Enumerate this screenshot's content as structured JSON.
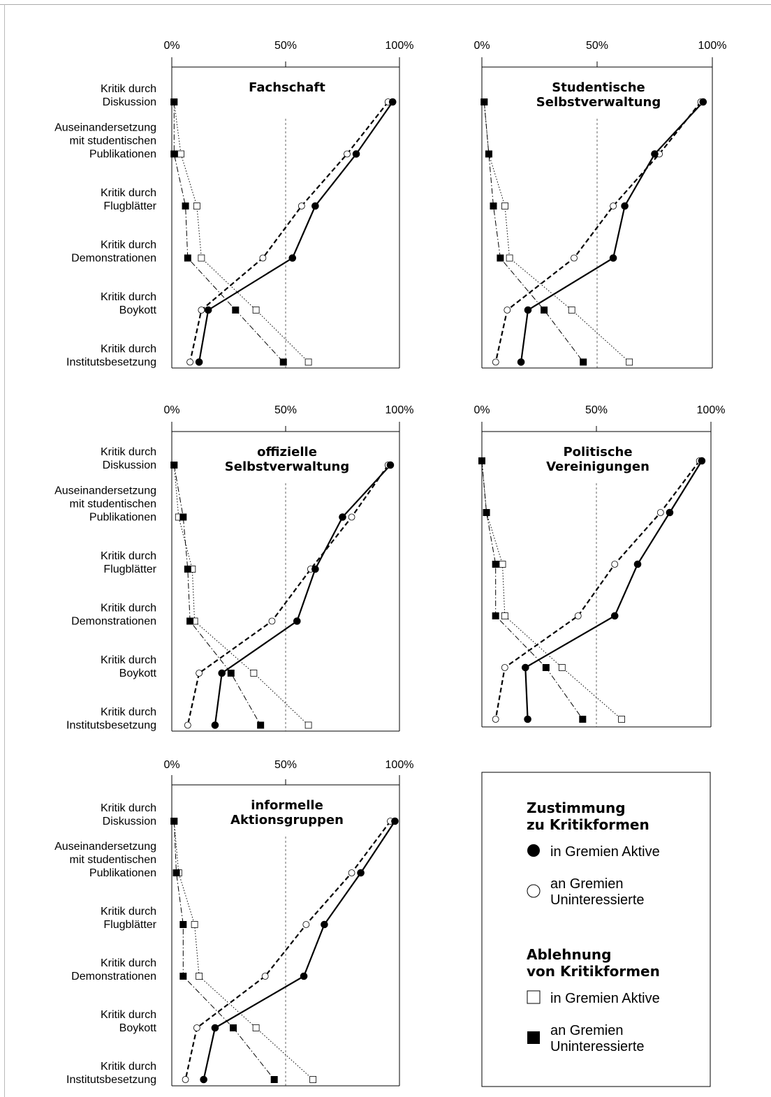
{
  "chart_data": {
    "type": "line",
    "orientation": "horizontal-profile",
    "x_ticks": [
      "0%",
      "50%",
      "100%"
    ],
    "xlim": [
      0,
      100
    ],
    "categories": [
      "Kritik durch\nDiskussion",
      "Auseinandersetzung\nmit studentischen\nPublikationen",
      "Kritik durch\nFlugblätter",
      "Kritik durch\nDemonstrationen",
      "Kritik durch\nBoykott",
      "Kritik durch\nInstitutsbesetzung"
    ],
    "series_styles": [
      {
        "key": "z_aktive",
        "marker": "filled-circle",
        "line": "solid"
      },
      {
        "key": "z_unint",
        "marker": "open-circle",
        "line": "dashed"
      },
      {
        "key": "a_aktive",
        "marker": "open-square",
        "line": "dotted"
      },
      {
        "key": "a_unint",
        "marker": "filled-square",
        "line": "dash-dot"
      }
    ],
    "panels": [
      {
        "title": "Fachschaft",
        "z_aktive": [
          97,
          81,
          63,
          53,
          16,
          12
        ],
        "z_unint": [
          95,
          77,
          57,
          40,
          13,
          8
        ],
        "a_aktive": [
          1,
          4,
          11,
          13,
          37,
          60
        ],
        "a_unint": [
          1,
          1,
          6,
          7,
          28,
          49
        ]
      },
      {
        "title": "Studentische\nSelbstverwaltung",
        "z_aktive": [
          96,
          75,
          62,
          57,
          20,
          17
        ],
        "z_unint": [
          95,
          77,
          57,
          40,
          11,
          6
        ],
        "a_aktive": [
          1,
          3,
          10,
          12,
          39,
          64
        ],
        "a_unint": [
          1,
          3,
          5,
          8,
          27,
          44
        ]
      },
      {
        "title": "offizielle\nSelbstverwaltung",
        "z_aktive": [
          96,
          75,
          63,
          55,
          22,
          19
        ],
        "z_unint": [
          95,
          79,
          61,
          44,
          12,
          7
        ],
        "a_aktive": [
          1,
          3,
          9,
          10,
          36,
          60
        ],
        "a_unint": [
          1,
          5,
          7,
          8,
          26,
          39
        ]
      },
      {
        "title": "Politische\nVereinigungen",
        "z_aktive": [
          96,
          82,
          68,
          58,
          19,
          20
        ],
        "z_unint": [
          95,
          78,
          58,
          42,
          10,
          6
        ],
        "a_aktive": [
          0,
          2,
          9,
          10,
          35,
          61
        ],
        "a_unint": [
          0,
          2,
          6,
          6,
          28,
          44
        ]
      },
      {
        "title": "informelle\nAktionsgruppen",
        "z_aktive": [
          98,
          83,
          67,
          58,
          19,
          14
        ],
        "z_unint": [
          96,
          79,
          59,
          41,
          11,
          6
        ],
        "a_aktive": [
          1,
          3,
          10,
          12,
          37,
          62
        ],
        "a_unint": [
          1,
          2,
          5,
          5,
          27,
          45
        ]
      }
    ],
    "legend": {
      "zustimmung_title": "Zustimmung\nzu Kritikformen",
      "ablehnung_title": "Ablehnung\nvon Kritikformen",
      "items": [
        {
          "group": "zustimmung",
          "marker": "filled-circle",
          "label": "in Gremien Aktive"
        },
        {
          "group": "zustimmung",
          "marker": "open-circle",
          "label": "an Gremien\nUninteressierte"
        },
        {
          "group": "ablehnung",
          "marker": "open-square",
          "label": "in Gremien Aktive"
        },
        {
          "group": "ablehnung",
          "marker": "filled-square",
          "label": "an Gremien\nUninteressierte"
        }
      ]
    }
  }
}
